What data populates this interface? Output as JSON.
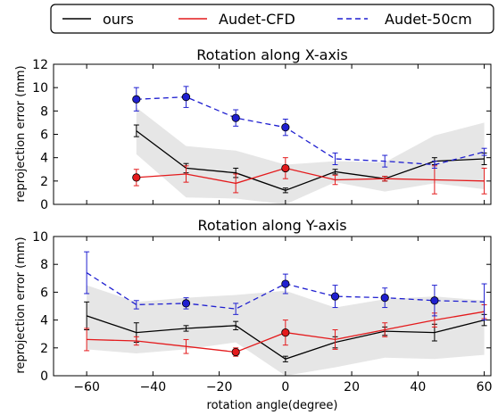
{
  "colors": {
    "ours": "#000000",
    "audet_cfd": "#e41a1c",
    "audet_50cm": "#1f1fd0",
    "band": "#e6e6e6"
  },
  "legend": {
    "placement": "top-center, outside panels",
    "items": [
      {
        "label": "ours",
        "style": "solid",
        "color": "#000000"
      },
      {
        "label": "Audet-CFD",
        "style": "solid",
        "color": "#e41a1c"
      },
      {
        "label": "Audet-50cm",
        "style": "dashed",
        "color": "#1f1fd0"
      }
    ]
  },
  "chart_data": [
    {
      "type": "line",
      "title": "Rotation along X-axis",
      "xlabel": "",
      "ylabel": "reprojection error (mm)",
      "xlim": [
        -70,
        62
      ],
      "ylim": [
        0,
        12
      ],
      "yticks": [
        0,
        2,
        4,
        6,
        8,
        10,
        12
      ],
      "xticks": [
        -60,
        -40,
        -20,
        0,
        20,
        40,
        60
      ],
      "show_xtick_labels": false,
      "grid": false,
      "series": [
        {
          "name": "ours",
          "style": "solid",
          "marker": "none",
          "x": [
            -45,
            -30,
            -15,
            0,
            15,
            30,
            45,
            60
          ],
          "y": [
            6.3,
            3.1,
            2.7,
            1.2,
            2.8,
            2.2,
            3.7,
            3.9
          ],
          "err": [
            0.5,
            0.4,
            0.4,
            0.2,
            0.2,
            0.2,
            0.3,
            0.5
          ]
        },
        {
          "name": "Audet-CFD",
          "style": "solid",
          "marker": "circle",
          "markers_at": [
            -45,
            0
          ],
          "x": [
            -45,
            -30,
            -15,
            0,
            15,
            30,
            45,
            60
          ],
          "y": [
            2.3,
            2.6,
            1.8,
            3.1,
            2.1,
            2.2,
            2.1,
            2.0
          ],
          "err": [
            0.7,
            0.7,
            0.8,
            0.9,
            0.4,
            0.2,
            1.2,
            1.1
          ]
        },
        {
          "name": "Audet-50cm",
          "style": "dashed",
          "marker": "circle",
          "markers_at": [
            -45,
            -30,
            -15,
            0
          ],
          "x": [
            -45,
            -30,
            -15,
            0,
            15,
            30,
            45,
            60
          ],
          "y": [
            9.0,
            9.2,
            7.4,
            6.6,
            3.9,
            3.7,
            3.4,
            4.5
          ],
          "err": [
            1.0,
            0.9,
            0.7,
            0.7,
            0.5,
            0.5,
            0.3,
            0.3
          ]
        }
      ],
      "band": {
        "x": [
          -45,
          -30,
          -15,
          0,
          15,
          30,
          45,
          60
        ],
        "lower": [
          4.3,
          0.6,
          0.5,
          0.0,
          1.9,
          1.1,
          1.8,
          1.3
        ],
        "upper": [
          8.3,
          5.0,
          4.6,
          3.4,
          3.7,
          3.6,
          5.9,
          7.0
        ]
      }
    },
    {
      "type": "line",
      "title": "Rotation along Y-axis",
      "xlabel": "rotation angle(degree)",
      "ylabel": "reprojection error (mm)",
      "xlim": [
        -70,
        62
      ],
      "ylim": [
        0,
        10
      ],
      "yticks": [
        0,
        2,
        4,
        6,
        8,
        10
      ],
      "xticks": [
        -60,
        -40,
        -20,
        0,
        20,
        40,
        60
      ],
      "show_xtick_labels": true,
      "grid": false,
      "series": [
        {
          "name": "ours",
          "style": "solid",
          "marker": "none",
          "x": [
            -60,
            -45,
            -30,
            -15,
            0,
            15,
            30,
            45,
            60
          ],
          "y": [
            4.3,
            3.1,
            3.4,
            3.6,
            1.2,
            2.4,
            3.2,
            3.1,
            4.0
          ],
          "err": [
            1.0,
            0.7,
            0.2,
            0.3,
            0.2,
            0.4,
            0.3,
            0.6,
            0.4
          ]
        },
        {
          "name": "Audet-CFD",
          "style": "solid",
          "marker": "circle",
          "markers_at": [
            -15,
            0
          ],
          "x": [
            -60,
            -45,
            -30,
            -15,
            0,
            15,
            30,
            45,
            60
          ],
          "y": [
            2.6,
            2.5,
            2.1,
            1.7,
            3.1,
            2.6,
            3.3,
            4.0,
            4.6
          ],
          "err": [
            0.8,
            0.3,
            0.5,
            0.3,
            0.9,
            0.7,
            0.5,
            0.5,
            0.5
          ]
        },
        {
          "name": "Audet-50cm",
          "style": "dashed",
          "marker": "circle",
          "markers_at": [
            -30,
            0,
            15,
            30,
            45
          ],
          "x": [
            -60,
            -45,
            -30,
            -15,
            0,
            15,
            30,
            45,
            60
          ],
          "y": [
            7.4,
            5.1,
            5.2,
            4.8,
            6.6,
            5.7,
            5.6,
            5.4,
            5.3
          ],
          "err": [
            1.5,
            0.3,
            0.4,
            0.4,
            0.7,
            0.8,
            0.7,
            1.1,
            1.3
          ]
        }
      ],
      "band": {
        "x": [
          -60,
          -45,
          -30,
          -15,
          0,
          15,
          30,
          45,
          60
        ],
        "lower": [
          1.9,
          1.6,
          1.9,
          2.4,
          0.0,
          0.6,
          1.3,
          1.2,
          1.5
        ],
        "upper": [
          6.5,
          5.3,
          5.6,
          5.8,
          6.1,
          4.9,
          5.5,
          5.7,
          5.4
        ]
      }
    }
  ]
}
